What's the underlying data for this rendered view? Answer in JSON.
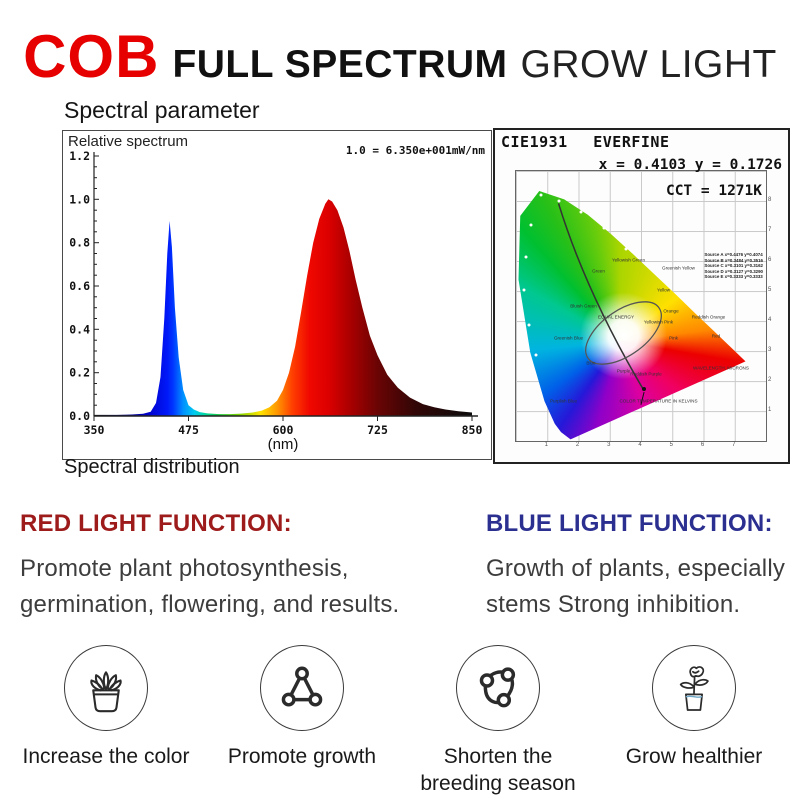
{
  "header": {
    "brand": "COB",
    "brand_color": "#e60000",
    "title_bold": "FULL SPECTRUM",
    "title_light": "GROW LIGHT"
  },
  "sections": {
    "top_label": "Spectral parameter",
    "bottom_label": "Spectral distribution"
  },
  "chart_data": [
    {
      "type": "area",
      "title": "Relative spectrum",
      "scale_note": "1.0 = 6.350e+001mW/nm",
      "xlabel": "(nm)",
      "xlim": [
        350,
        850
      ],
      "ylim": [
        0,
        1.2
      ],
      "x_ticks": [
        350,
        475,
        600,
        725,
        850
      ],
      "y_ticks": [
        "0.0",
        "0.2",
        "0.4",
        "0.6",
        "0.8",
        "1.0",
        "1.2"
      ],
      "grid": false,
      "legend_position": "none",
      "x": [
        350,
        380,
        400,
        415,
        425,
        432,
        438,
        443,
        447,
        450,
        453,
        457,
        462,
        468,
        475,
        482,
        490,
        500,
        515,
        530,
        545,
        560,
        572,
        582,
        592,
        600,
        608,
        616,
        624,
        632,
        640,
        648,
        656,
        660,
        665,
        672,
        680,
        688,
        696,
        705,
        715,
        725,
        738,
        752,
        768,
        785,
        800,
        815,
        832,
        850
      ],
      "values": [
        0.005,
        0.005,
        0.007,
        0.01,
        0.02,
        0.06,
        0.18,
        0.45,
        0.75,
        0.9,
        0.78,
        0.5,
        0.27,
        0.12,
        0.05,
        0.03,
        0.018,
        0.012,
        0.009,
        0.009,
        0.011,
        0.016,
        0.025,
        0.04,
        0.07,
        0.12,
        0.2,
        0.32,
        0.48,
        0.65,
        0.8,
        0.91,
        0.98,
        1.0,
        0.99,
        0.95,
        0.87,
        0.76,
        0.63,
        0.5,
        0.37,
        0.28,
        0.19,
        0.13,
        0.085,
        0.055,
        0.04,
        0.03,
        0.022,
        0.016
      ],
      "peaks": [
        {
          "nm": 450,
          "value": 0.9
        },
        {
          "nm": 660,
          "value": 1.0
        }
      ]
    },
    {
      "type": "scatter",
      "title": "CIE1931",
      "vendor": "EVERFINE",
      "readout": "x = 0.4103 y = 0.1726",
      "cct": "CCT = 1271K",
      "point": {
        "x": 0.4103,
        "y": 0.1726
      },
      "legend": [
        "Source A x=0.4476 y=0.4074",
        "Source B x=0.3484 y=0.3516",
        "Source C x=0.3101 y=0.3162",
        "Source D x=0.3127 y=0.3290",
        "Source E x=0.3333 y=0.3333"
      ],
      "region_labels": [
        "Green",
        "Yellowish Green",
        "Greenish Yellow",
        "Yellow",
        "Orange",
        "Reddish Orange",
        "Red",
        "Yellowish Pink",
        "Pink",
        "Purple",
        "Reddish Purple",
        "Blue",
        "Purplish Blue",
        "Greenish Blue",
        "Bluish Green",
        "EQUAL ENERGY",
        "COLOR TEMPERATURE IN KELVINS",
        "WAVELENGTH, MICRONS"
      ],
      "x_grid_ticks": [
        "1",
        "2",
        "3",
        "4",
        "5",
        "6",
        "7"
      ],
      "y_grid_ticks": [
        "1",
        "2",
        "3",
        "4",
        "5",
        "6",
        "7",
        "8"
      ]
    }
  ],
  "functions": {
    "red": {
      "heading": "RED LIGHT FUNCTION:",
      "color": "#9e1b1b",
      "line1": "Promote plant photosynthesis,",
      "line2": "germination, flowering, and results."
    },
    "blue": {
      "heading": "BLUE LIGHT FUNCTION:",
      "color": "#2b2f90",
      "line1": "Growth of plants, especially",
      "line2": "stems Strong inhibition."
    }
  },
  "features": [
    {
      "icon": "succulent-pot-icon",
      "label": "Increase the color"
    },
    {
      "icon": "molecule-icon",
      "label": "Promote growth"
    },
    {
      "icon": "cycle-icon",
      "label": "Shorten the breeding season"
    },
    {
      "icon": "flower-pot-icon",
      "label": "Grow healthier"
    }
  ]
}
